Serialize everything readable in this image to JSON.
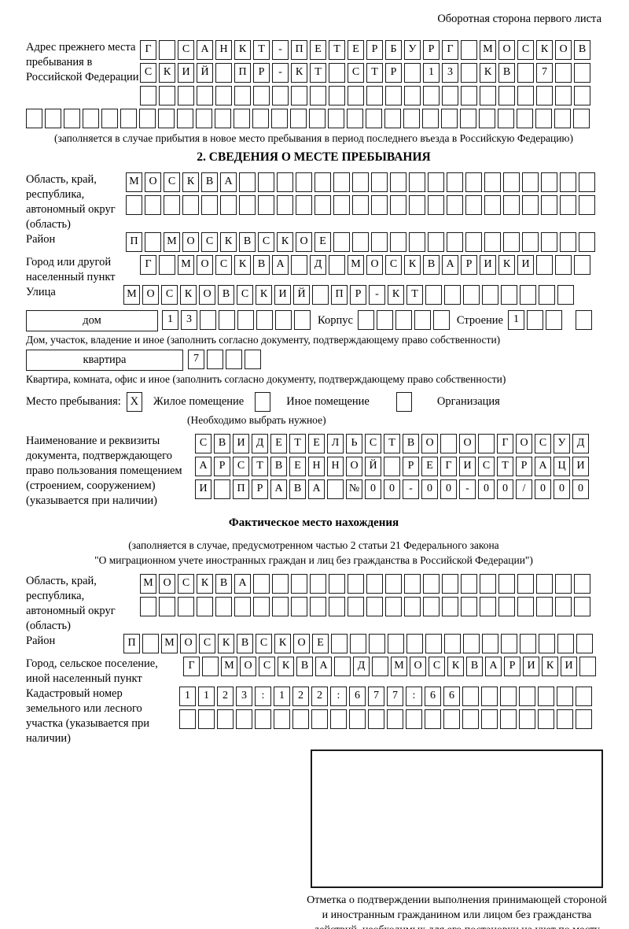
{
  "colors": {
    "ink": "#1a1a1a",
    "paper": "#ffffff"
  },
  "header": {
    "corner_note": "Оборотная сторона первого листа"
  },
  "prev_address": {
    "label": "Адрес прежнего места пребывания в Российской Федерации",
    "row1": "Г·САНКТ-ПЕТЕРБУРГ·МОСКОВ",
    "row2": "СКИЙ·ПР-КТ·СТР·13·КВ·7··",
    "row3": "························",
    "row4": "······························",
    "note": "(заполняется в случае прибытия в новое место пребывания в период последнего въезда в Российскую Федерацию)"
  },
  "section2": {
    "title": "2. СВЕДЕНИЯ О МЕСТЕ ПРЕБЫВАНИЯ",
    "oblast": {
      "label": "Область, край, республика, автономный округ (область)",
      "row1": "МОСКВА···················",
      "row2": "·························"
    },
    "raion": {
      "label": "Район",
      "row": "П·МОСКВСКОЕ··············"
    },
    "gorod": {
      "label": "Город или другой населенный пункт",
      "row": "Г·МОСКВА·Д·МОСКВАРИКИ···"
    },
    "ulitsa": {
      "label": "Улица",
      "row": "МОСКОВСКИЙ·ПР-КТ········"
    },
    "dom": {
      "box_label": "дом",
      "cells": "13······",
      "korpus_label": "Корпус",
      "korpus_cells": "·····",
      "stroenie_label": "Строение",
      "stroenie_cells": "1··",
      "stroenie_extra": "·",
      "note": "Дом, участок, владение и иное (заполнить согласно документу, подтверждающему право собственности)"
    },
    "kvartira": {
      "box_label": "квартира",
      "cells": "7···",
      "note": "Квартира, комната, офис и иное (заполнить согласно документу, подтверждающему право собственности)"
    },
    "mesto": {
      "label": "Место пребывания:",
      "options": [
        {
          "label": "Жилое помещение",
          "mark": "X"
        },
        {
          "label": "Иное помещение",
          "mark": ""
        },
        {
          "label": "Организация",
          "mark": ""
        }
      ],
      "note": "(Необходимо выбрать нужное)"
    },
    "doc": {
      "label": "Наименование и реквизиты документа, подтверждающего право пользования помещением (строением, сооружением) (указывается при наличии)",
      "row1": "СВИДЕТЕЛЬСТВО·О·ГОСУД",
      "row2": "АРСТВЕННОЙ·РЕГИСТРАЦИ",
      "row3": "И·ПРАВА·№00-00-00/000"
    }
  },
  "fact": {
    "title": "Фактическое место нахождения",
    "note1": "(заполняется в случае, предусмотренном частью 2 статьи 21 Федерального закона",
    "note2": "\"О миграционном учете иностранных граждан и лиц без гражданства в Российской Федерации\")",
    "oblast": {
      "label": "Область, край, республика, автономный округ (область)",
      "row1": "МОСКВА··················",
      "row2": "························"
    },
    "raion": {
      "label": "Район",
      "row": "П·МОСКВСКОЕ··············"
    },
    "gorod": {
      "label": "Город, сельское поселение, иной населенный пункт",
      "row": "Г·МОСКВА·Д·МОСКВАРИКИ·"
    },
    "kadastr": {
      "label": "Кадастровый номер земельного или лесного участка (указывается при наличии)",
      "row1": "1123:122:677:66·······",
      "row2": "······················"
    },
    "stamp_caption": "Отметка о подтверждении выполнения принимающей стороной и иностранным гражданином или лицом без гражданства действий, необходимых для его постановки на учет по месту пребывания"
  }
}
